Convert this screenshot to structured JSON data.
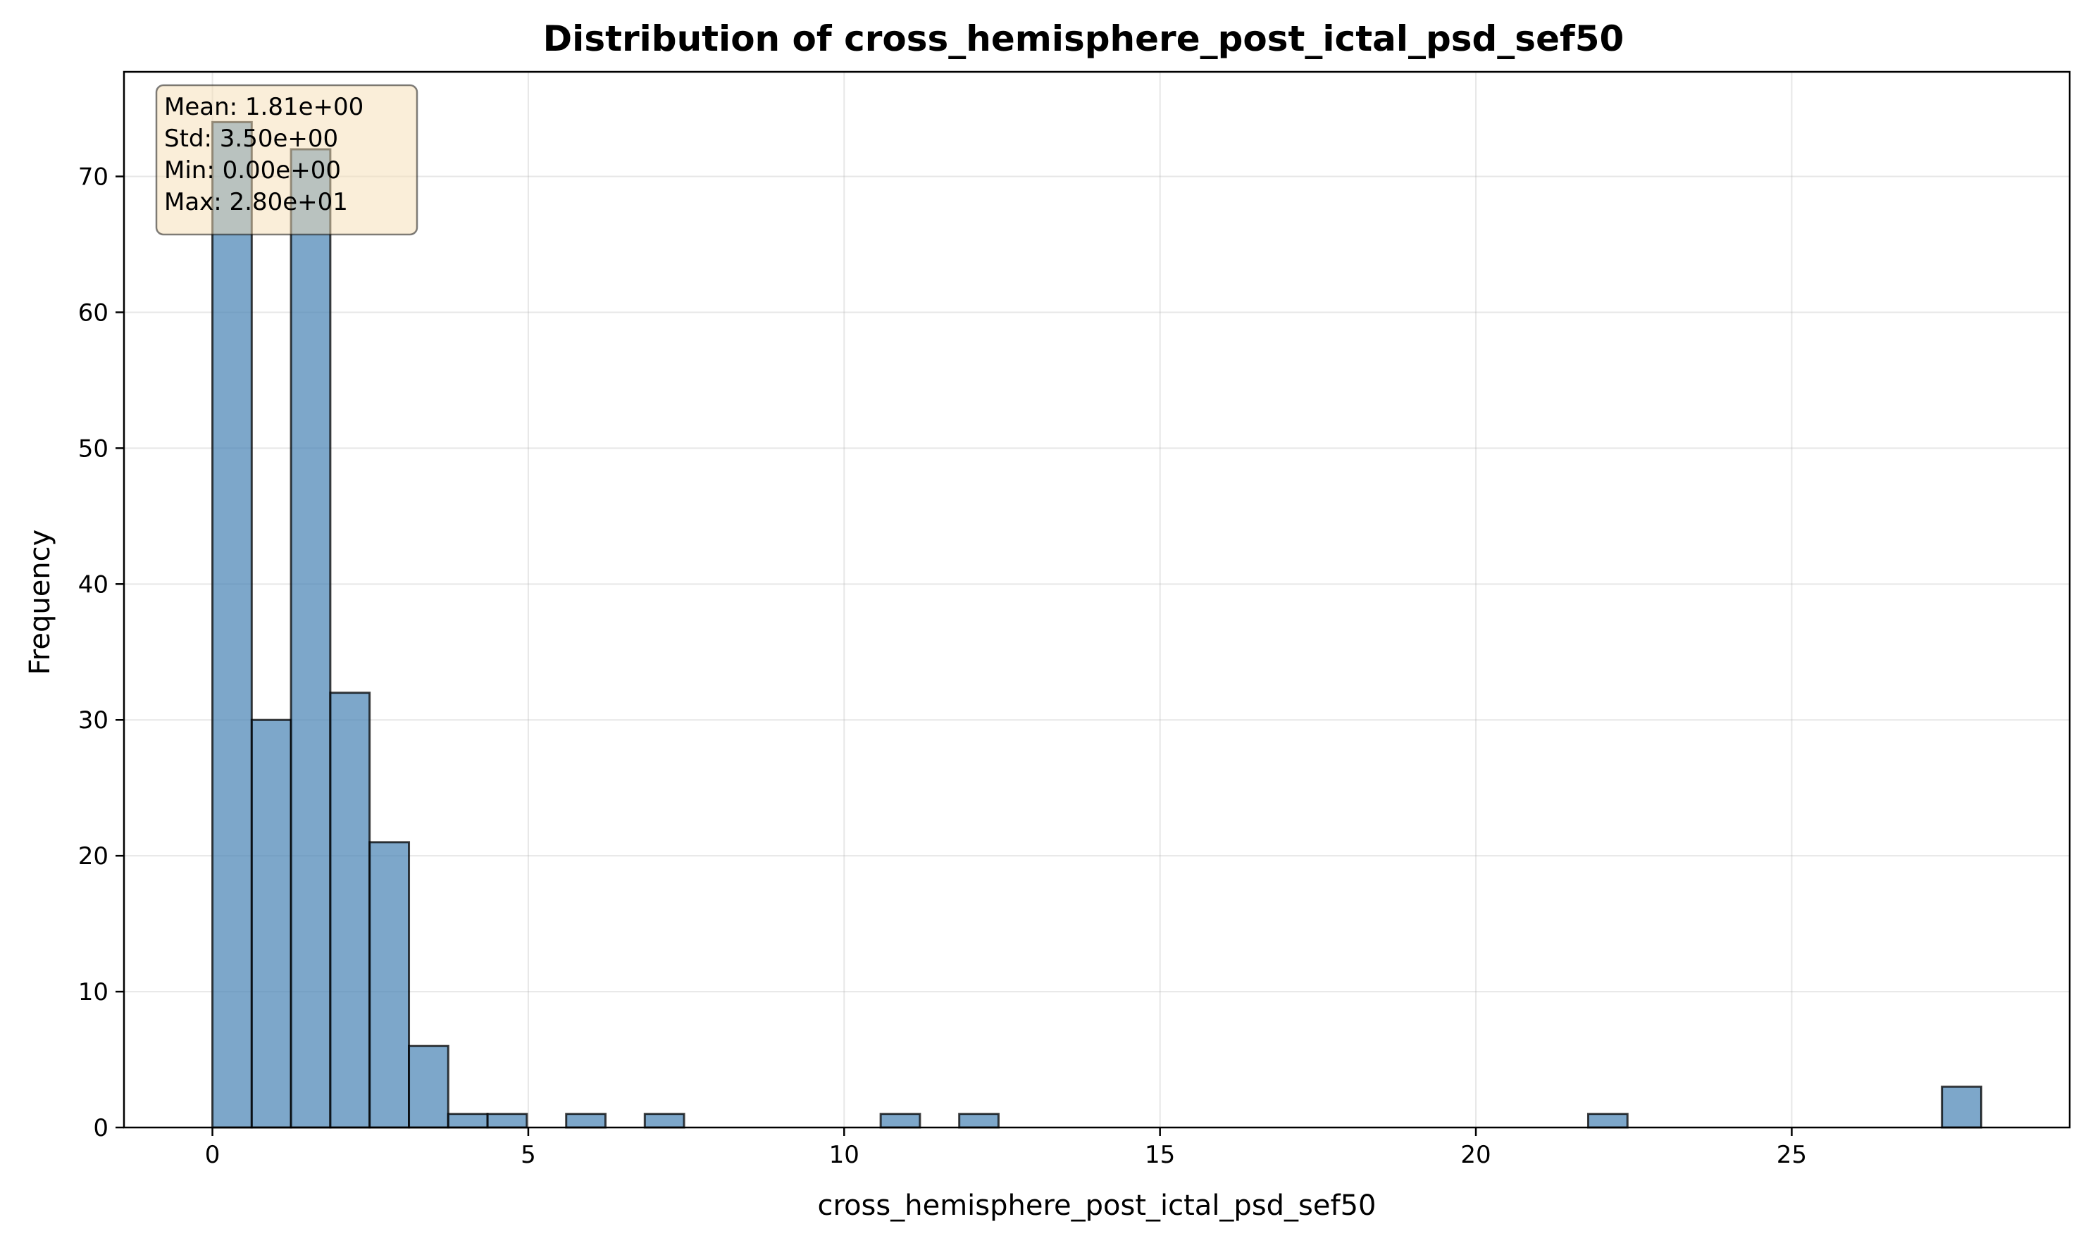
{
  "chart_data": {
    "type": "bar",
    "title": "Distribution of cross_hemisphere_post_ictal_psd_sef50",
    "xlabel": "cross_hemisphere_post_ictal_psd_sef50",
    "ylabel": "Frequency",
    "xlim": [
      -1.4,
      29.4
    ],
    "ylim": [
      0,
      77.7
    ],
    "xticks": [
      0,
      5,
      10,
      15,
      20,
      25
    ],
    "yticks": [
      0,
      10,
      20,
      30,
      40,
      50,
      60,
      70
    ],
    "bin_width": 0.622,
    "bin_starts": [
      0,
      0.622,
      1.244,
      1.866,
      2.489,
      3.111,
      3.733,
      4.355,
      5.6,
      6.844,
      10.578,
      11.822,
      21.778,
      27.378
    ],
    "values": [
      74,
      30,
      72,
      32,
      21,
      6,
      1,
      1,
      1,
      1,
      1,
      1,
      1,
      3
    ],
    "grid": true,
    "bar_color": "#4682b4",
    "stats_box": {
      "lines": [
        "Mean: 1.81e+00",
        "Std: 3.50e+00",
        "Min: 0.00e+00",
        "Max: 2.80e+01"
      ],
      "background": "#f5deb3",
      "placement": "top-left"
    }
  }
}
